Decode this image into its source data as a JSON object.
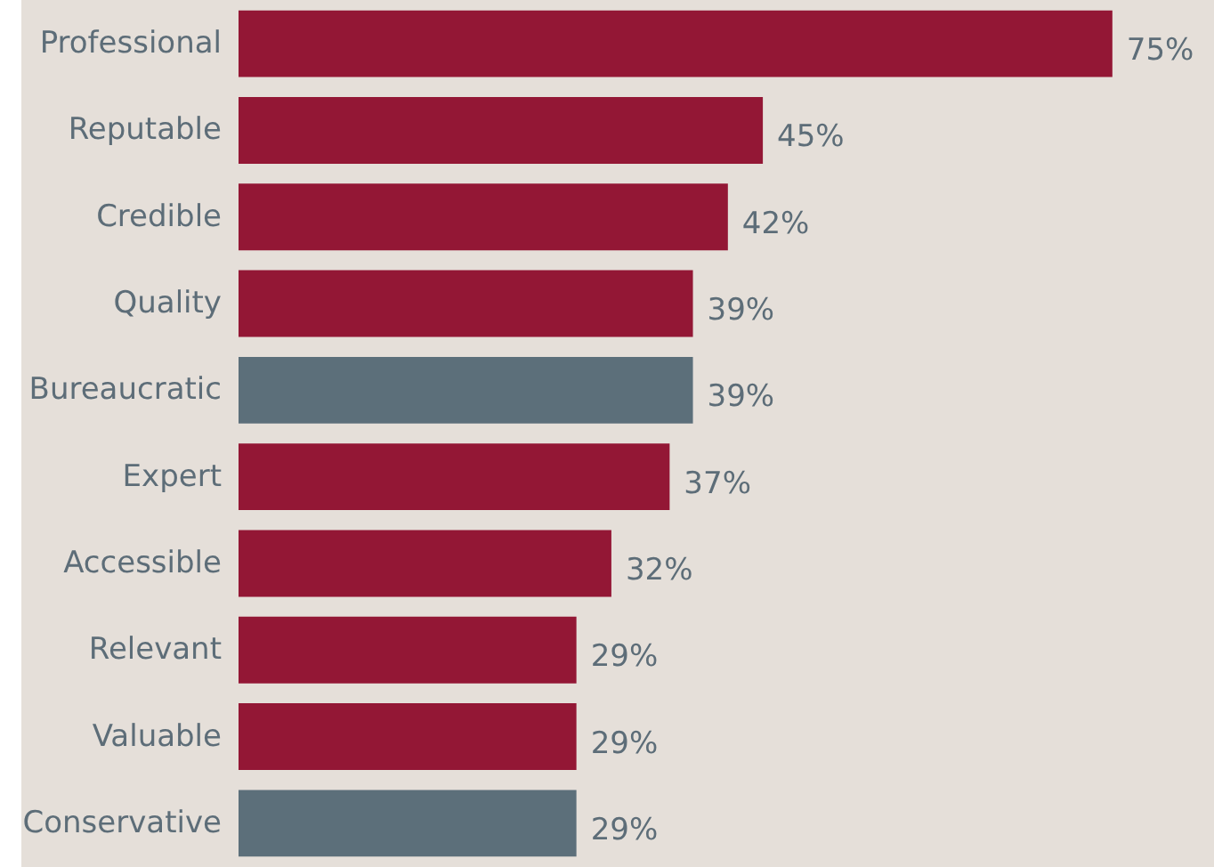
{
  "chart_data": {
    "type": "bar",
    "orientation": "horizontal",
    "categories": [
      "Professional",
      "Reputable",
      "Credible",
      "Quality",
      "Bureaucratic",
      "Expert",
      "Accessible",
      "Relevant",
      "Valuable",
      "Conservative"
    ],
    "values": [
      75,
      45,
      42,
      39,
      39,
      37,
      32,
      29,
      29,
      29
    ],
    "value_labels": [
      "75%",
      "45%",
      "42%",
      "39%",
      "39%",
      "37%",
      "32%",
      "29%",
      "29%",
      "29%"
    ],
    "colors": [
      "#931735",
      "#931735",
      "#931735",
      "#931735",
      "#5c6f7a",
      "#931735",
      "#931735",
      "#931735",
      "#931735",
      "#5c6f7a"
    ]
  }
}
